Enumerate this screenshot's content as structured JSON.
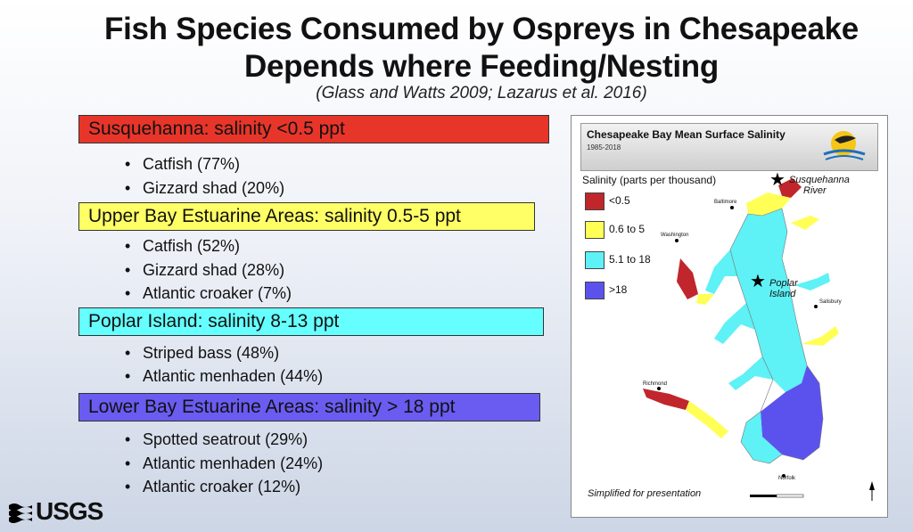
{
  "title": {
    "line1": "Fish Species Consumed by Ospreys in Chesapeake",
    "line2": "Depends where Feeding/Nesting"
  },
  "citation": "(Glass and Watts 2009; Lazarus et al. 2016)",
  "sections": [
    {
      "label": "Susquehanna: salinity <0.5 ppt",
      "color": "#e8352a",
      "items": [
        "Catfish (77%)",
        "Gizzard shad (20%)"
      ]
    },
    {
      "label": "Upper Bay Estuarine Areas: salinity 0.5-5 ppt",
      "color": "#ffff66",
      "items": [
        "Catfish (52%)",
        "Gizzard shad (28%)",
        "Atlantic croaker (7%)"
      ]
    },
    {
      "label": "Poplar Island: salinity 8-13 ppt",
      "color": "#66ffff",
      "items": [
        "Striped bass (48%)",
        "Atlantic menhaden (44%)"
      ]
    },
    {
      "label": "Lower Bay Estuarine Areas: salinity > 18 ppt",
      "color": "#6a5cf0",
      "items": [
        "Spotted seatrout (29%)",
        "Atlantic menhaden (24%)",
        "Atlantic croaker (12%)"
      ]
    }
  ],
  "map": {
    "title": "Chesapeake Bay Mean Surface Salinity",
    "years": "1985-2018",
    "legend_title": "Salinity (parts per thousand)",
    "legend": [
      {
        "label": "<0.5",
        "color": "#c0262b"
      },
      {
        "label": "0.6 to 5",
        "color": "#ffff55"
      },
      {
        "label": "5.1 to 18",
        "color": "#5ef1f5"
      },
      {
        "label": ">18",
        "color": "#5b52ee"
      }
    ],
    "annotations": {
      "susquehanna_line1": "Susquehanna",
      "susquehanna_line2": "River",
      "poplar_line1": "Poplar",
      "poplar_line2": "Island"
    },
    "cities": [
      "Baltimore",
      "Washington",
      "Richmond",
      "Salisbury",
      "Norfolk"
    ],
    "footer_note": "Simplified for presentation"
  },
  "logo": {
    "text": "USGS"
  }
}
